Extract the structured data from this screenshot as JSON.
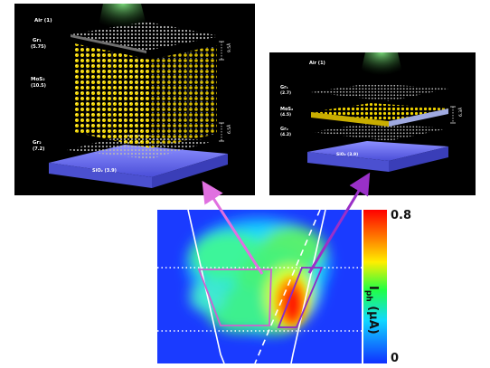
{
  "left_panel": {
    "top_label": "Air (1)",
    "layers": [
      {
        "name": "Gr₁",
        "value": "(5.75)"
      },
      {
        "name": "MoS₂",
        "value": "(10.5)"
      },
      {
        "name": "Gr₂",
        "value": "(7.2)"
      }
    ],
    "substrate": "SiO₂ (3.9)",
    "spacings": [
      "9.5Å",
      "6.5Å"
    ]
  },
  "right_panel": {
    "top_label": "Air (1)",
    "layers": [
      {
        "name": "Gr₁",
        "value": "(2.7)"
      },
      {
        "name": "MoS₂",
        "value": "(4.5)"
      },
      {
        "name": "Gr₂",
        "value": "(4.2)"
      }
    ],
    "substrate": "SiO₂ (3.9)",
    "spacings": [
      "6.3Å"
    ]
  },
  "colorbar": {
    "max_label": "0.8",
    "min_label": "0",
    "title": "I",
    "title_sub": "ph",
    "title_unit": " (µA)"
  },
  "colors": {
    "highlight_box": "#cc66cc",
    "arrow_left": "#e070e0",
    "arrow_right": "#9a30c8",
    "molybdenum": "#7f9ae0",
    "sulfur": "#f0d400",
    "carbon": "#9a9a9a",
    "substrate": "#6f73ff"
  }
}
